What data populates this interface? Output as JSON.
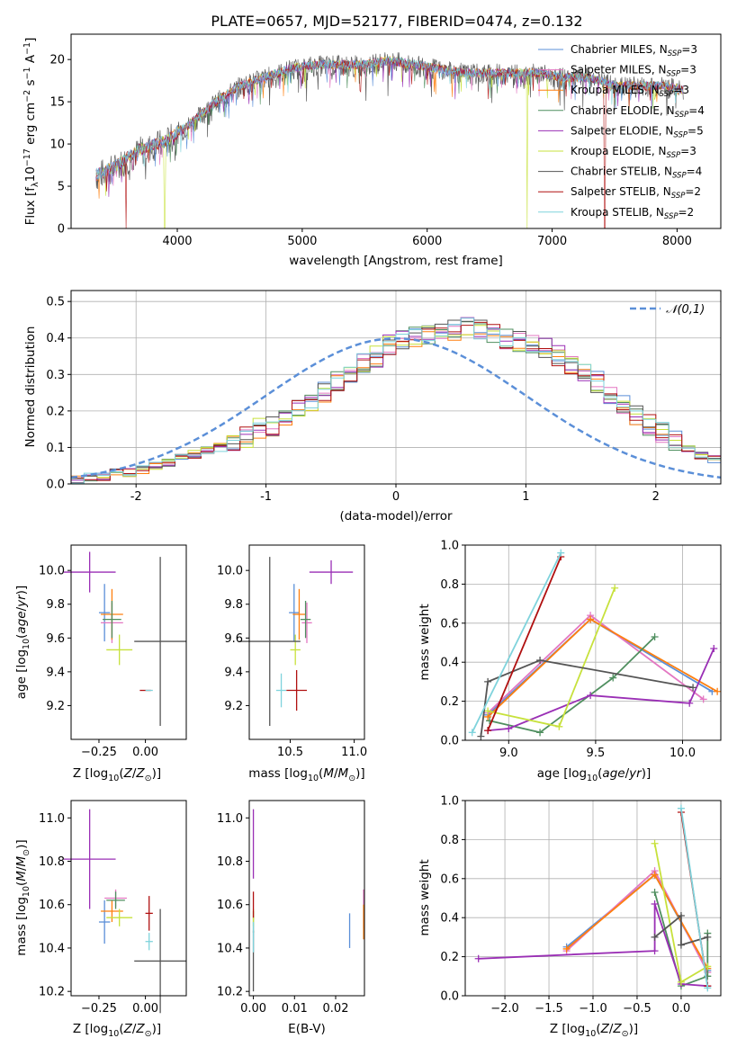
{
  "title": "PLATE=0657, MJD=52177, FIBERID=0474, z=0.132",
  "colors": {
    "Chabrier MILES": "#5b8fd8",
    "Salpeter MILES": "#e377c2",
    "Kroupa MILES": "#ff7f0e",
    "Chabrier ELODIE": "#4f8f5f",
    "Salpeter ELODIE": "#9a2fb5",
    "Kroupa ELODIE": "#c7e13c",
    "Chabrier STELIB": "#555555",
    "Salpeter STELIB": "#b01010",
    "Kroupa STELIB": "#7fd3dc"
  },
  "chart_data": [
    {
      "id": "spectrum",
      "type": "line",
      "xlabel": "wavelength [Angstrom, rest frame]",
      "ylabel": "Flux [f",
      "xlim": [
        3150,
        8350
      ],
      "ylim": [
        0,
        23
      ],
      "xticks": [
        4000,
        5000,
        6000,
        7000,
        8000
      ],
      "yticks": [
        0,
        5,
        10,
        15,
        20
      ],
      "legend_position": "upper right",
      "legend": [
        {
          "model": "Chabrier MILES",
          "n": "3"
        },
        {
          "model": "Salpeter MILES",
          "n": "3"
        },
        {
          "model": "Kroupa MILES",
          "n": "3"
        },
        {
          "model": "Chabrier ELODIE",
          "n": "4"
        },
        {
          "model": "Salpeter ELODIE",
          "n": "5"
        },
        {
          "model": "Kroupa ELODIE",
          "n": "3"
        },
        {
          "model": "Chabrier STELIB",
          "n": "4"
        },
        {
          "model": "Salpeter STELIB",
          "n": "2"
        },
        {
          "model": "Kroupa STELIB",
          "n": "2"
        }
      ],
      "spectrum_envelope": {
        "x": [
          3350,
          3500,
          3700,
          3900,
          4100,
          4300,
          4500,
          4700,
          4900,
          5100,
          5300,
          5500,
          5700,
          5900,
          6100,
          6300,
          6500,
          6700,
          6900,
          7100,
          7300,
          7500,
          7700,
          7900,
          8050
        ],
        "y": [
          6.5,
          7.5,
          9.5,
          10.5,
          12.5,
          15,
          17,
          18,
          19,
          19.5,
          19.5,
          19.5,
          20,
          19.5,
          19,
          18.5,
          18.5,
          18.5,
          18.5,
          18,
          18,
          17,
          17,
          17,
          16.5
        ]
      },
      "absorption_drops": [
        {
          "model": "Salpeter STELIB",
          "x": 3590
        },
        {
          "model": "Kroupa ELODIE",
          "x": 3900
        },
        {
          "model": "Kroupa ELODIE",
          "x": 6800
        },
        {
          "model": "Salpeter STELIB",
          "x": 7420
        }
      ]
    },
    {
      "id": "residuals",
      "type": "histogram",
      "xlabel": "(data-model)/error",
      "ylabel": "Normed distribution",
      "xlim": [
        -2.5,
        2.5
      ],
      "ylim": [
        0,
        0.53
      ],
      "xticks": [
        -2,
        -1,
        0,
        1,
        2
      ],
      "yticks": [
        0.0,
        0.1,
        0.2,
        0.3,
        0.4,
        0.5
      ],
      "grid": true,
      "legend": "𝒩(0,1)",
      "legend_position": "upper right",
      "bin_width": 0.1,
      "bin_start": -2.5,
      "base_values": [
        0.01,
        0.02,
        0.02,
        0.03,
        0.03,
        0.04,
        0.05,
        0.06,
        0.07,
        0.08,
        0.09,
        0.1,
        0.12,
        0.13,
        0.15,
        0.16,
        0.18,
        0.2,
        0.22,
        0.25,
        0.28,
        0.3,
        0.33,
        0.35,
        0.38,
        0.4,
        0.4,
        0.41,
        0.42,
        0.42,
        0.43,
        0.42,
        0.41,
        0.4,
        0.39,
        0.38,
        0.37,
        0.35,
        0.33,
        0.3,
        0.28,
        0.25,
        0.22,
        0.19,
        0.16,
        0.14,
        0.12,
        0.1,
        0.08,
        0.07
      ]
    },
    {
      "id": "age-vs-Z",
      "type": "errorbar",
      "xlabel": "Z [log",
      "ylabel": "age  [log",
      "xlim": [
        -0.4,
        0.22
      ],
      "ylim": [
        9.0,
        10.15
      ],
      "xticks": [
        -0.25,
        0.0
      ],
      "xtick_labels": [
        "−0.25",
        "0.00"
      ],
      "yticks": [
        9.2,
        9.4,
        9.6,
        9.8,
        10.0
      ],
      "points": [
        {
          "model": "Chabrier MILES",
          "x": -0.22,
          "xe": 0.03,
          "y": 9.75,
          "ye": 0.17
        },
        {
          "model": "Salpeter MILES",
          "x": -0.18,
          "xe": 0.06,
          "y": 9.69,
          "ye": 0.12
        },
        {
          "model": "Kroupa MILES",
          "x": -0.18,
          "xe": 0.06,
          "y": 9.74,
          "ye": 0.15
        },
        {
          "model": "Chabrier ELODIE",
          "x": -0.18,
          "xe": 0.05,
          "y": 9.71,
          "ye": 0.11
        },
        {
          "model": "Salpeter ELODIE",
          "x": -0.3,
          "xe": 0.14,
          "y": 9.99,
          "ye": 0.12
        },
        {
          "model": "Kroupa ELODIE",
          "x": -0.14,
          "xe": 0.07,
          "y": 9.53,
          "ye": 0.09
        },
        {
          "model": "Chabrier STELIB",
          "x": 0.08,
          "xe": 0.14,
          "y": 9.58,
          "ye": 0.5
        },
        {
          "model": "Salpeter STELIB",
          "x": -0.0,
          "xe": 0.03,
          "y": 9.29,
          "ye": 0.0
        },
        {
          "model": "Kroupa STELIB",
          "x": 0.02,
          "xe": 0.02,
          "y": 9.29,
          "ye": 0.0
        }
      ]
    },
    {
      "id": "age-vs-mass",
      "type": "errorbar",
      "xlabel": "mass [log",
      "ylabel": "",
      "xlim": [
        10.18,
        11.08
      ],
      "ylim": [
        9.0,
        10.15
      ],
      "xticks": [
        10.5,
        11.0
      ],
      "xtick_labels": [
        "10.5",
        "11.0"
      ],
      "yticks": [
        9.2,
        9.4,
        9.6,
        9.8,
        10.0
      ],
      "points": [
        {
          "model": "Chabrier MILES",
          "x": 10.53,
          "xe": 0.04,
          "y": 9.75,
          "ye": 0.17
        },
        {
          "model": "Salpeter MILES",
          "x": 10.63,
          "xe": 0.04,
          "y": 9.69,
          "ye": 0.12
        },
        {
          "model": "Kroupa MILES",
          "x": 10.57,
          "xe": 0.05,
          "y": 9.74,
          "ye": 0.15
        },
        {
          "model": "Chabrier ELODIE",
          "x": 10.62,
          "xe": 0.04,
          "y": 9.71,
          "ye": 0.11
        },
        {
          "model": "Salpeter ELODIE",
          "x": 10.82,
          "xe": 0.17,
          "y": 9.99,
          "ye": 0.07
        },
        {
          "model": "Kroupa ELODIE",
          "x": 10.54,
          "xe": 0.04,
          "y": 9.53,
          "ye": 0.09
        },
        {
          "model": "Chabrier STELIB",
          "x": 10.34,
          "xe": 0.24,
          "y": 9.58,
          "ye": 0.5
        },
        {
          "model": "Salpeter STELIB",
          "x": 10.55,
          "xe": 0.08,
          "y": 9.29,
          "ye": 0.12
        },
        {
          "model": "Kroupa STELIB",
          "x": 10.43,
          "xe": 0.04,
          "y": 9.29,
          "ye": 0.1
        }
      ]
    },
    {
      "id": "massweight-vs-age",
      "type": "line",
      "xlabel": "age  [log",
      "ylabel": "mass weight",
      "xlim": [
        8.75,
        10.22
      ],
      "ylim": [
        0,
        1.0
      ],
      "xticks": [
        9.0,
        9.5,
        10.0
      ],
      "xtick_labels": [
        "9.0",
        "9.5",
        "10.0"
      ],
      "yticks": [
        0.0,
        0.2,
        0.4,
        0.6,
        0.8,
        1.0
      ],
      "grid": true,
      "series": [
        {
          "model": "Chabrier MILES",
          "x": [
            8.88,
            9.47,
            10.17
          ],
          "y": [
            0.13,
            0.62,
            0.25
          ]
        },
        {
          "model": "Salpeter MILES",
          "x": [
            8.88,
            9.47,
            10.12
          ],
          "y": [
            0.14,
            0.64,
            0.21
          ]
        },
        {
          "model": "Kroupa MILES",
          "x": [
            8.88,
            9.47,
            10.2
          ],
          "y": [
            0.12,
            0.62,
            0.25
          ]
        },
        {
          "model": "Chabrier ELODIE",
          "x": [
            8.89,
            9.18,
            9.6,
            9.84
          ],
          "y": [
            0.1,
            0.04,
            0.32,
            0.53
          ]
        },
        {
          "model": "Salpeter ELODIE",
          "x": [
            8.88,
            9.0,
            9.47,
            10.04,
            10.18
          ],
          "y": [
            0.05,
            0.06,
            0.23,
            0.19,
            0.47
          ]
        },
        {
          "model": "Kroupa ELODIE",
          "x": [
            8.88,
            9.29,
            9.61
          ],
          "y": [
            0.15,
            0.07,
            0.78
          ]
        },
        {
          "model": "Chabrier STELIB",
          "x": [
            8.84,
            8.88,
            9.18,
            10.06
          ],
          "y": [
            0.02,
            0.3,
            0.41,
            0.27
          ]
        },
        {
          "model": "Salpeter STELIB",
          "x": [
            8.88,
            9.3
          ],
          "y": [
            0.05,
            0.94
          ]
        },
        {
          "model": "Kroupa STELIB",
          "x": [
            8.79,
            9.3
          ],
          "y": [
            0.04,
            0.96
          ]
        }
      ]
    },
    {
      "id": "mass-vs-Z",
      "type": "errorbar",
      "xlabel": "Z [log",
      "ylabel": "mass [log",
      "xlim": [
        -0.4,
        0.22
      ],
      "ylim": [
        10.18,
        11.08
      ],
      "xticks": [
        -0.25,
        0.0
      ],
      "xtick_labels": [
        "−0.25",
        "0.00"
      ],
      "yticks": [
        10.2,
        10.4,
        10.6,
        10.8,
        11.0
      ],
      "points": [
        {
          "model": "Chabrier MILES",
          "x": -0.22,
          "xe": 0.03,
          "y": 10.52,
          "ye": 0.1
        },
        {
          "model": "Salpeter MILES",
          "x": -0.16,
          "xe": 0.06,
          "y": 10.63,
          "ye": 0.04
        },
        {
          "model": "Kroupa MILES",
          "x": -0.18,
          "xe": 0.06,
          "y": 10.57,
          "ye": 0.05
        },
        {
          "model": "Chabrier ELODIE",
          "x": -0.16,
          "xe": 0.05,
          "y": 10.62,
          "ye": 0.04
        },
        {
          "model": "Salpeter ELODIE",
          "x": -0.3,
          "xe": 0.14,
          "y": 10.81,
          "ye": 0.23
        },
        {
          "model": "Kroupa ELODIE",
          "x": -0.14,
          "xe": 0.07,
          "y": 10.54,
          "ye": 0.04
        },
        {
          "model": "Chabrier STELIB",
          "x": 0.08,
          "xe": 0.14,
          "y": 10.34,
          "ye": 0.24
        },
        {
          "model": "Salpeter STELIB",
          "x": 0.02,
          "xe": 0.02,
          "y": 10.56,
          "ye": 0.08
        },
        {
          "model": "Kroupa STELIB",
          "x": 0.02,
          "xe": 0.02,
          "y": 10.43,
          "ye": 0.04
        }
      ]
    },
    {
      "id": "mass-vs-EBV",
      "type": "errorbar",
      "xlabel": "E(B-V)",
      "ylabel": "",
      "xlim": [
        -0.001,
        0.027
      ],
      "ylim": [
        10.18,
        11.08
      ],
      "xticks": [
        0.0,
        0.01,
        0.02
      ],
      "xtick_labels": [
        "0.00",
        "0.01",
        "0.02"
      ],
      "yticks": [
        10.2,
        10.4,
        10.6,
        10.8,
        11.0
      ],
      "points": [
        {
          "model": "Chabrier MILES",
          "x": 0.0234,
          "xe": 0,
          "y": 10.48,
          "ye": 0.08
        },
        {
          "model": "Salpeter MILES",
          "x": 0.0268,
          "xe": 0,
          "y": 10.58,
          "ye": 0.09
        },
        {
          "model": "Kroupa MILES",
          "x": 0.0268,
          "xe": 0,
          "y": 10.52,
          "ye": 0.08
        },
        {
          "model": "Chabrier ELODIE",
          "x": 0.0,
          "xe": 0,
          "y": 10.52,
          "ye": 0.05
        },
        {
          "model": "Salpeter ELODIE",
          "x": 0.0,
          "xe": 0,
          "y": 10.88,
          "ye": 0.16
        },
        {
          "model": "Kroupa ELODIE",
          "x": 0.0,
          "xe": 0,
          "y": 10.54,
          "ye": 0.04
        },
        {
          "model": "Chabrier STELIB",
          "x": 0.0,
          "xe": 0,
          "y": 10.34,
          "ye": 0.14
        },
        {
          "model": "Salpeter STELIB",
          "x": 0.0,
          "xe": 0,
          "y": 10.6,
          "ye": 0.06
        },
        {
          "model": "Kroupa STELIB",
          "x": 0.0,
          "xe": 0,
          "y": 10.45,
          "ye": 0.07
        }
      ]
    },
    {
      "id": "massweight-vs-Z",
      "type": "line",
      "xlabel": "Z [log",
      "ylabel": "mass weight",
      "xlim": [
        -2.45,
        0.45
      ],
      "ylim": [
        0,
        1.0
      ],
      "xticks": [
        -2.0,
        -1.5,
        -1.0,
        -0.5,
        0.0
      ],
      "xtick_labels": [
        "−2.0",
        "−1.5",
        "−1.0",
        "−0.5",
        "0.0"
      ],
      "yticks": [
        0.0,
        0.2,
        0.4,
        0.6,
        0.8,
        1.0
      ],
      "grid": true,
      "series": [
        {
          "model": "Chabrier MILES",
          "x": [
            -1.3,
            -0.3,
            0.3
          ],
          "y": [
            0.25,
            0.62,
            0.13
          ]
        },
        {
          "model": "Salpeter MILES",
          "x": [
            -1.3,
            -0.3,
            0.3
          ],
          "y": [
            0.23,
            0.64,
            0.12
          ]
        },
        {
          "model": "Kroupa MILES",
          "x": [
            -1.3,
            -0.3,
            0.3
          ],
          "y": [
            0.24,
            0.62,
            0.14
          ]
        },
        {
          "model": "Chabrier ELODIE",
          "x": [
            -0.3,
            0.0,
            0.3,
            0.3
          ],
          "y": [
            0.53,
            0.05,
            0.1,
            0.32
          ]
        },
        {
          "model": "Salpeter ELODIE",
          "x": [
            -2.3,
            -0.3,
            -0.3,
            0.0,
            0.3
          ],
          "y": [
            0.19,
            0.23,
            0.47,
            0.06,
            0.05
          ]
        },
        {
          "model": "Kroupa ELODIE",
          "x": [
            -0.3,
            0.0,
            0.3
          ],
          "y": [
            0.78,
            0.07,
            0.15
          ]
        },
        {
          "model": "Chabrier STELIB",
          "x": [
            -0.3,
            0.0,
            0.0,
            0.3
          ],
          "y": [
            0.3,
            0.41,
            0.26,
            0.3
          ]
        },
        {
          "model": "Salpeter STELIB",
          "x": [
            0.0,
            0.3
          ],
          "y": [
            0.94,
            0.05
          ]
        },
        {
          "model": "Kroupa STELIB",
          "x": [
            0.0,
            0.3
          ],
          "y": [
            0.96,
            0.04
          ]
        }
      ]
    }
  ]
}
